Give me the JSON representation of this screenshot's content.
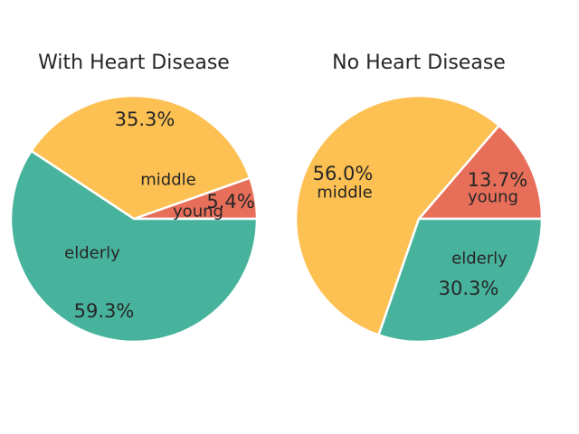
{
  "chart_data": [
    {
      "type": "pie",
      "title": "With Heart Disease",
      "slices": [
        {
          "label": "young",
          "value": 5.4,
          "pct_text": "5.4%",
          "color": "#e76f5a"
        },
        {
          "label": "middle",
          "value": 35.3,
          "pct_text": "35.3%",
          "color": "#fdc052"
        },
        {
          "label": "elderly",
          "value": 59.3,
          "pct_text": "59.3%",
          "color": "#48b39c"
        }
      ]
    },
    {
      "type": "pie",
      "title": "No Heart Disease",
      "slices": [
        {
          "label": "young",
          "value": 13.7,
          "pct_text": "13.7%",
          "color": "#e76f5a"
        },
        {
          "label": "middle",
          "value": 56.0,
          "pct_text": "56.0%",
          "color": "#fdc052"
        },
        {
          "label": "elderly",
          "value": 30.3,
          "pct_text": "30.3%",
          "color": "#48b39c"
        }
      ]
    }
  ]
}
